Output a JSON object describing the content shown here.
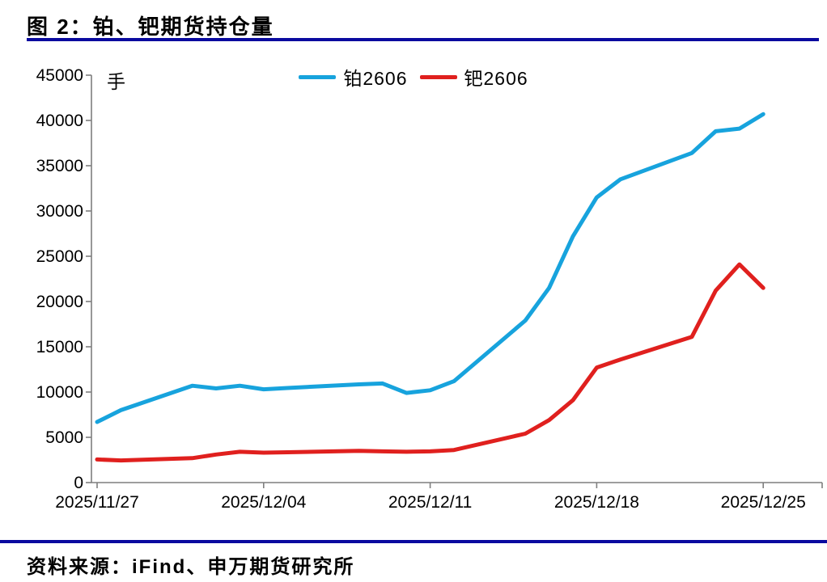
{
  "figure": {
    "title": "图 2：铂、钯期货持仓量",
    "source": "资料来源：iFind、申万期货研究所"
  },
  "colors": {
    "rule_blue": "#0a0a9f",
    "axis_gray": "#7f7f7f",
    "text_black": "#000000"
  },
  "chart_data": {
    "type": "line",
    "title": "图 2：铂、钯期货持仓量",
    "unit_label": "手",
    "x": [
      "2025/11/27",
      "2025/11/28",
      "2025/12/01",
      "2025/12/02",
      "2025/12/03",
      "2025/12/04",
      "2025/12/05",
      "2025/12/08",
      "2025/12/09",
      "2025/12/10",
      "2025/12/11",
      "2025/12/12",
      "2025/12/15",
      "2025/12/16",
      "2025/12/17",
      "2025/12/18",
      "2025/12/19",
      "2025/12/22",
      "2025/12/23",
      "2025/12/24",
      "2025/12/25"
    ],
    "series": [
      {
        "name": "铂2606",
        "color": "#17a3dd",
        "values": [
          6700,
          8000,
          10700,
          10400,
          10700,
          10300,
          10450,
          10850,
          10950,
          9900,
          10200,
          11200,
          17900,
          21500,
          27200,
          31500,
          33500,
          36400,
          38800,
          39100,
          40700
        ]
      },
      {
        "name": "钯2606",
        "color": "#e0201e",
        "values": [
          2550,
          2450,
          2700,
          3100,
          3400,
          3300,
          3350,
          3500,
          3450,
          3400,
          3450,
          3600,
          5400,
          6900,
          9100,
          12700,
          13600,
          16100,
          21200,
          24100,
          21500
        ]
      }
    ],
    "xtick_labels": [
      "2025/11/27",
      "2025/12/04",
      "2025/12/11",
      "2025/12/18",
      "2025/12/25"
    ],
    "yticks": [
      0,
      5000,
      10000,
      15000,
      20000,
      25000,
      30000,
      35000,
      40000,
      45000
    ],
    "ylim": [
      0,
      45000
    ],
    "ytick_step": 5000,
    "grid": false,
    "legend_position": "top-center"
  }
}
